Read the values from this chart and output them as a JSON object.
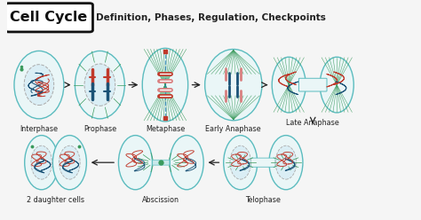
{
  "title_box_text": "Cell Cycle",
  "subtitle_text": "Definition, Phases, Regulation, Checkpoints",
  "bg_color": "#f5f5f5",
  "title_bg": "#ffffff",
  "title_border": "#111111",
  "title_color": "#111111",
  "subtitle_color": "#222222",
  "cell_outline": "#5bbcbf",
  "cell_fill": "#eaf6f7",
  "nucleus_outline": "#aaaaaa",
  "nucleus_fill": "#daeef5",
  "green_line": "#3a9a5c",
  "red_chrom": "#c0392b",
  "blue_chrom": "#1a5276",
  "pink_chrom": "#d98080",
  "arrow_color": "#222222",
  "phases_row1": [
    "Interphase",
    "Prophase",
    "Metaphase",
    "Early Anaphase",
    "Late Anaphase"
  ],
  "phases_row2": [
    "2 daughter cells",
    "Abscission",
    "Telophase"
  ],
  "R1Y": 0.615,
  "R2Y": 0.26,
  "CRX": 0.06,
  "CRY": 0.155,
  "r1x": [
    0.078,
    0.225,
    0.383,
    0.548,
    0.74
  ],
  "r2x": [
    0.118,
    0.373,
    0.62
  ],
  "label_fs": 5.8,
  "subtitle_fs": 7.5,
  "title_fs": 11.5
}
